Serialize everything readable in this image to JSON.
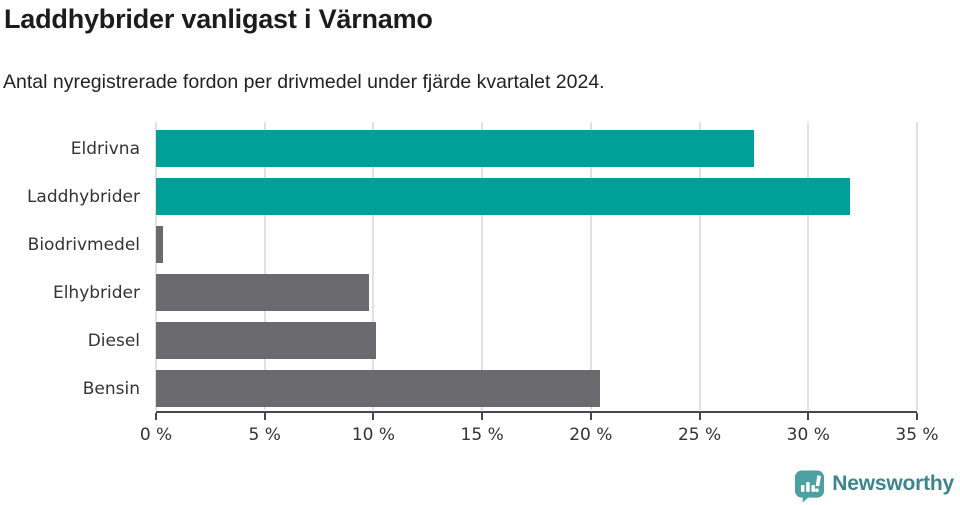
{
  "header": {
    "title": "Laddhybrider vanligast i Värnamo",
    "subtitle": "Antal nyregistrerade fordon per drivmedel under fjärde kvartalet 2024."
  },
  "chart_data": {
    "type": "bar",
    "orientation": "horizontal",
    "title": "Laddhybrider vanligast i Värnamo",
    "subtitle": "Antal nyregistrerade fordon per drivmedel under fjärde kvartalet 2024.",
    "categories": [
      "Eldrivna",
      "Laddhybrider",
      "Biodrivmedel",
      "Elhybrider",
      "Diesel",
      "Bensin"
    ],
    "values": [
      27.5,
      31.9,
      0.3,
      9.8,
      10.1,
      20.4
    ],
    "unit": "%",
    "xlim": [
      0,
      35
    ],
    "x_ticks": [
      0,
      5,
      10,
      15,
      20,
      25,
      30,
      35
    ],
    "x_tick_labels": [
      "0 %",
      "5 %",
      "10 %",
      "15 %",
      "20 %",
      "25 %",
      "30 %",
      "35 %"
    ],
    "xlabel": "",
    "ylabel": "",
    "grid": true,
    "legend": false,
    "colors": {
      "highlight": "#00a099",
      "default": "#6b6b6f",
      "bar_colors": [
        "#00a099",
        "#00a099",
        "#6b6b6f",
        "#6b6b6f",
        "#6b6b6f",
        "#6b6b6f"
      ],
      "gridline": "#e1e1e1",
      "axis": "#47474b",
      "text": "#333333"
    }
  },
  "footer": {
    "brand": "Newsworthy",
    "brand_color": "#3c858d",
    "icon_color": "#4ca0a1",
    "logo_icon": "bar-chart-speech-bubble-icon"
  }
}
